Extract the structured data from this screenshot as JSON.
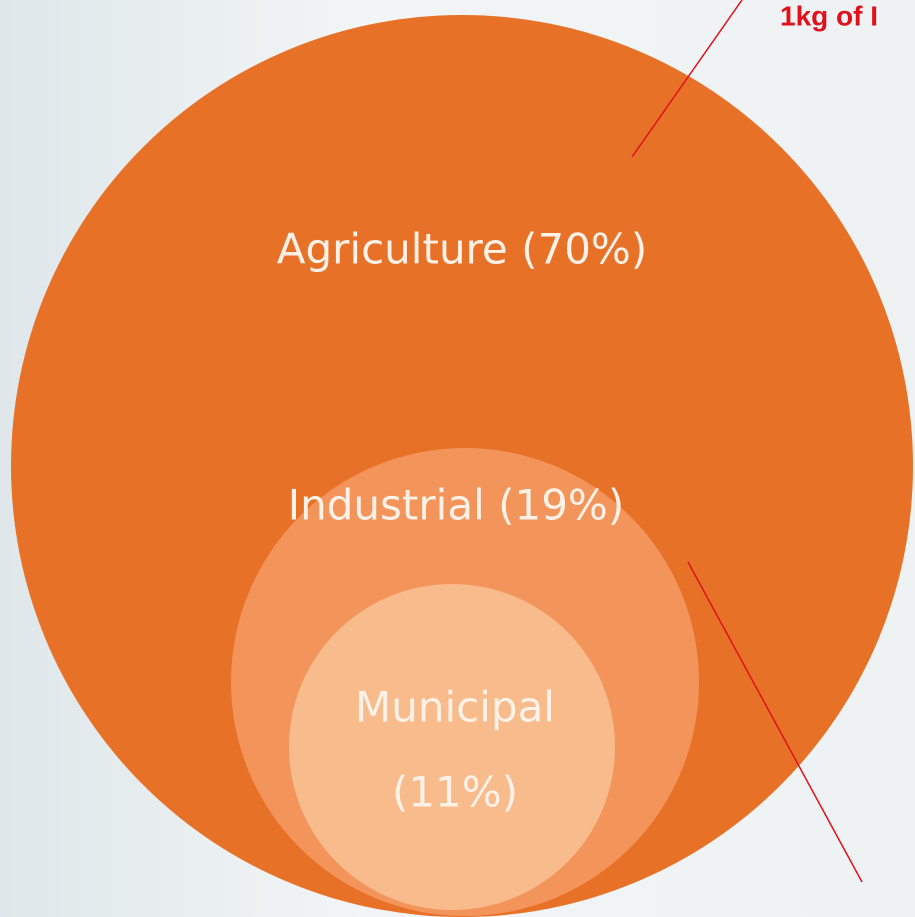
{
  "circles": [
    {
      "label": "Agriculture (70%)"
    },
    {
      "label": "Industrial (19%)"
    },
    {
      "label_lines": [
        "Municipal",
        "(11%)"
      ]
    }
  ],
  "callout": "1kg of I"
}
